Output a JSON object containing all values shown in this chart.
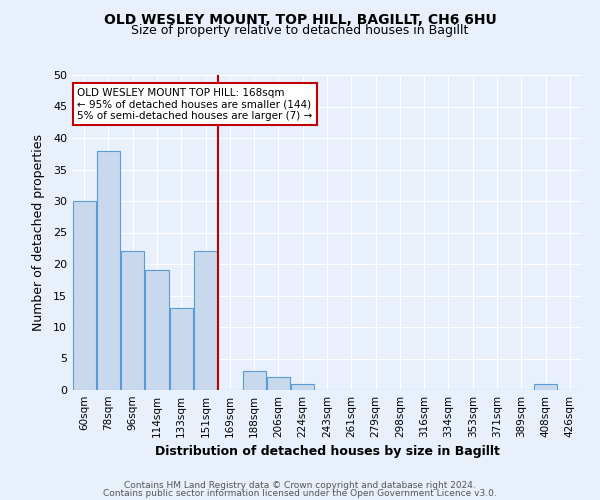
{
  "title": "OLD WESLEY MOUNT, TOP HILL, BAGILLT, CH6 6HU",
  "subtitle": "Size of property relative to detached houses in Bagillt",
  "xlabel": "Distribution of detached houses by size in Bagillt",
  "ylabel": "Number of detached properties",
  "categories": [
    "60sqm",
    "78sqm",
    "96sqm",
    "114sqm",
    "133sqm",
    "151sqm",
    "169sqm",
    "188sqm",
    "206sqm",
    "224sqm",
    "243sqm",
    "261sqm",
    "279sqm",
    "298sqm",
    "316sqm",
    "334sqm",
    "353sqm",
    "371sqm",
    "389sqm",
    "408sqm",
    "426sqm"
  ],
  "values": [
    30,
    38,
    22,
    19,
    13,
    22,
    0,
    3,
    2,
    1,
    0,
    0,
    0,
    0,
    0,
    0,
    0,
    0,
    0,
    1,
    0
  ],
  "bar_color": "#c8d9ed",
  "bar_edge_color": "#5b9bd5",
  "marker_index": 6,
  "marker_color": "#c00000",
  "ylim": [
    0,
    50
  ],
  "yticks": [
    0,
    5,
    10,
    15,
    20,
    25,
    30,
    35,
    40,
    45,
    50
  ],
  "annotation_title": "OLD WESLEY MOUNT TOP HILL: 168sqm",
  "annotation_line1": "← 95% of detached houses are smaller (144)",
  "annotation_line2": "5% of semi-detached houses are larger (7) →",
  "footer1": "Contains HM Land Registry data © Crown copyright and database right 2024.",
  "footer2": "Contains public sector information licensed under the Open Government Licence v3.0.",
  "background_color": "#e8f0fb",
  "plot_bg_color": "#e8f0fb"
}
